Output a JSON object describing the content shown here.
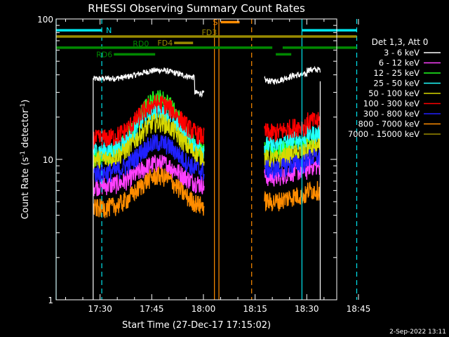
{
  "chart_data": {
    "type": "line",
    "title": "RHESSI Observing Summary Count Rates",
    "xlabel": "Start Time (27-Dec-17 17:15:02)",
    "ylabel_main": "Count Rate (s",
    "ylabel_sup1": "-1",
    "ylabel_mid": " detector",
    "ylabel_sup2": "-1",
    "ylabel_end": ")",
    "y_scale": "log",
    "ylim": [
      1,
      100
    ],
    "xlim_minutes": [
      17.25,
      98.7
    ],
    "x_tick_labels": [
      "17:30",
      "17:45",
      "18:00",
      "18:15",
      "18:30",
      "18:45"
    ],
    "x_tick_minutes": [
      30,
      45,
      60,
      75,
      90,
      105
    ],
    "y_tick_labels": [
      "1",
      "10",
      "100"
    ],
    "y_tick_values": [
      1,
      10,
      100
    ],
    "legend_header": "Det 1,3, Att 0",
    "legend_placement": "right",
    "series": [
      {
        "name": "3 - 6 keV",
        "color": "#ffffff",
        "pre": 37.5,
        "bump": 1.15,
        "post": 36
      },
      {
        "name": "6 - 12 keV",
        "color": "#ff40ff",
        "pre": 6.5,
        "bump": 1.45,
        "post": 7.5
      },
      {
        "name": "12 - 25 keV",
        "color": "#20ff20",
        "pre": 10.5,
        "bump": 2.6,
        "post": 11.5
      },
      {
        "name": "25 - 50 keV",
        "color": "#20ffff",
        "pre": 11.5,
        "bump": 1.95,
        "post": 12.5
      },
      {
        "name": "50 - 100 keV",
        "color": "#d8d800",
        "pre": 10.0,
        "bump": 1.85,
        "post": 10.0
      },
      {
        "name": "100 - 300 keV",
        "color": "#ff0000",
        "pre": 14.0,
        "bump": 1.8,
        "post": 15.5
      },
      {
        "name": "300 - 800 keV",
        "color": "#2020ff",
        "pre": 8.0,
        "bump": 1.65,
        "post": 8.5
      },
      {
        "name": "800 - 7000 keV",
        "color": "#ff8c00",
        "pre": 4.5,
        "bump": 1.7,
        "post": 5.0
      },
      {
        "name": "7000 - 15000 keV",
        "color": "#9a8a00",
        "pre": null,
        "bump": null,
        "post": null
      }
    ],
    "data_segments_minutes": [
      [
        28.0,
        60.3
      ],
      [
        77.7,
        93.9
      ]
    ],
    "night_label": "N",
    "saa_label": "S",
    "flags": [
      {
        "label": "N",
        "color": "#00e5ee",
        "level": 83,
        "segments": [
          [
            17.25,
            30.5
          ],
          [
            88.6,
            104.5
          ]
        ]
      },
      {
        "label": "S",
        "color": "#ff8c00",
        "level": 95,
        "segments": [
          [
            65.0,
            70.5
          ]
        ]
      },
      {
        "label": "FD3",
        "color": "#9a8a00",
        "level": 75,
        "segments": [
          [
            17.25,
            104.5
          ]
        ]
      },
      {
        "label": "FD4",
        "color": "#9a8a00",
        "level": 67.5,
        "segments": [
          [
            51.5,
            57.0
          ]
        ]
      },
      {
        "label": "RD0",
        "color": "#008800",
        "level": 62.5,
        "segments": [
          [
            17.25,
            80.0
          ],
          [
            83.0,
            104.5
          ]
        ]
      },
      {
        "label": "RD6",
        "color": "#008800",
        "level": 56,
        "segments": [
          [
            34.0,
            46.0
          ],
          [
            81.0,
            85.5
          ]
        ]
      }
    ],
    "vlines_minutes": [
      {
        "t": 17.25,
        "color": "#00e5ee",
        "style": "solid"
      },
      {
        "t": 30.5,
        "color": "#00e5ee",
        "style": "dashed"
      },
      {
        "t": 88.6,
        "color": "#00e5ee",
        "style": "solid"
      },
      {
        "t": 104.5,
        "color": "#00e5ee",
        "style": "dashed"
      },
      {
        "t": 63.2,
        "color": "#ff8c00",
        "style": "solid"
      },
      {
        "t": 64.5,
        "color": "#ff8c00",
        "style": "solid"
      },
      {
        "t": 74.0,
        "color": "#ff8c00",
        "style": "dashed"
      }
    ]
  },
  "timestamp": "2-Sep-2022 13:11"
}
